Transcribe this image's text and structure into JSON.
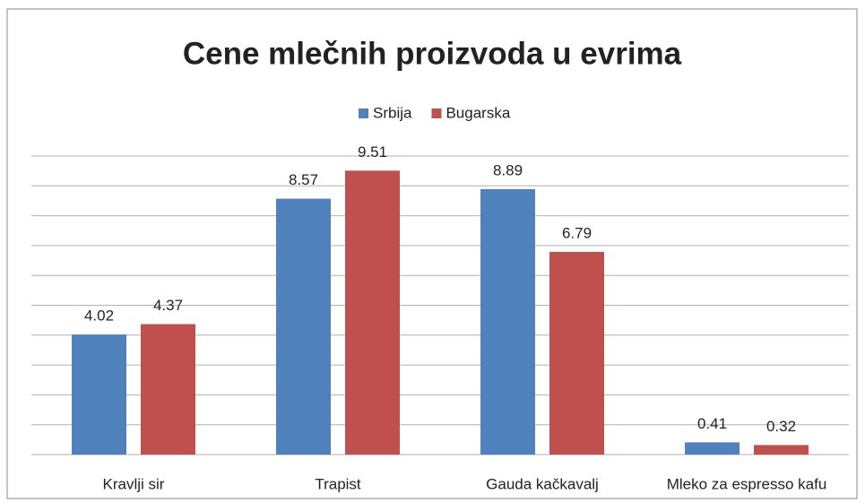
{
  "chart_data": {
    "type": "bar",
    "title": "Cene mlečnih proizvoda u evrima",
    "categories": [
      "Kravlji sir",
      "Trapist",
      "Gauda kačkavalj",
      "Mleko za espresso kafu"
    ],
    "series": [
      {
        "name": "Srbija",
        "color": "#4f81bd",
        "values": [
          4.02,
          8.57,
          8.89,
          0.41
        ]
      },
      {
        "name": "Bugarska",
        "color": "#c0504d",
        "values": [
          4.37,
          9.51,
          6.79,
          0.32
        ]
      }
    ],
    "ylim": [
      0,
      10
    ],
    "yticks": [
      0,
      1,
      2,
      3,
      4,
      5,
      6,
      7,
      8,
      9,
      10
    ],
    "grid": true,
    "legend": "top"
  }
}
